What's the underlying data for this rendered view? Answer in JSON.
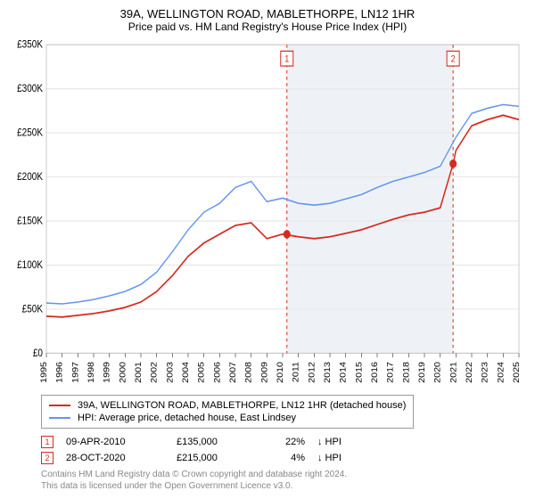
{
  "title": "39A, WELLINGTON ROAD, MABLETHORPE, LN12 1HR",
  "subtitle": "Price paid vs. HM Land Registry's House Price Index (HPI)",
  "chart": {
    "type": "line",
    "background_color": "#ffffff",
    "shaded_region_color": "#eef2f7",
    "grid_color": "#e8e8e8",
    "inner_border_color": "#cccccc",
    "x_axis": {
      "min": 1995,
      "max": 2025,
      "tick_step": 1,
      "label": ""
    },
    "y_axis": {
      "min": 0,
      "max": 350000,
      "tick_step": 50000,
      "label_prefix": "£",
      "label_suffix": "K",
      "label_divisor": 1000
    },
    "series": [
      {
        "name": "hpi",
        "label": "HPI: Average price, detached house, East Lindsey",
        "color": "#6495ed",
        "line_width": 1.3,
        "data": [
          [
            1995,
            57000
          ],
          [
            1996,
            56000
          ],
          [
            1997,
            58000
          ],
          [
            1998,
            61000
          ],
          [
            1999,
            65000
          ],
          [
            2000,
            70000
          ],
          [
            2001,
            78000
          ],
          [
            2002,
            92000
          ],
          [
            2003,
            115000
          ],
          [
            2004,
            140000
          ],
          [
            2005,
            160000
          ],
          [
            2006,
            170000
          ],
          [
            2007,
            188000
          ],
          [
            2008,
            195000
          ],
          [
            2009,
            172000
          ],
          [
            2010,
            176000
          ],
          [
            2011,
            170000
          ],
          [
            2012,
            168000
          ],
          [
            2013,
            170000
          ],
          [
            2014,
            175000
          ],
          [
            2015,
            180000
          ],
          [
            2016,
            188000
          ],
          [
            2017,
            195000
          ],
          [
            2018,
            200000
          ],
          [
            2019,
            205000
          ],
          [
            2020,
            212000
          ],
          [
            2021,
            245000
          ],
          [
            2022,
            272000
          ],
          [
            2023,
            278000
          ],
          [
            2024,
            282000
          ],
          [
            2025,
            280000
          ]
        ]
      },
      {
        "name": "property",
        "label": "39A, WELLINGTON ROAD, MABLETHORPE, LN12 1HR (detached house)",
        "color": "#d52b1e",
        "line_width": 1.5,
        "data": [
          [
            1995,
            42000
          ],
          [
            1996,
            41000
          ],
          [
            1997,
            43000
          ],
          [
            1998,
            45000
          ],
          [
            1999,
            48000
          ],
          [
            2000,
            52000
          ],
          [
            2001,
            58000
          ],
          [
            2002,
            70000
          ],
          [
            2003,
            88000
          ],
          [
            2004,
            110000
          ],
          [
            2005,
            125000
          ],
          [
            2006,
            135000
          ],
          [
            2007,
            145000
          ],
          [
            2008,
            148000
          ],
          [
            2009,
            130000
          ],
          [
            2010,
            135000
          ],
          [
            2011,
            132000
          ],
          [
            2012,
            130000
          ],
          [
            2013,
            132000
          ],
          [
            2014,
            136000
          ],
          [
            2015,
            140000
          ],
          [
            2016,
            146000
          ],
          [
            2017,
            152000
          ],
          [
            2018,
            157000
          ],
          [
            2019,
            160000
          ],
          [
            2020,
            165000
          ],
          [
            2020.82,
            215000
          ],
          [
            2021,
            230000
          ],
          [
            2022,
            258000
          ],
          [
            2023,
            265000
          ],
          [
            2024,
            270000
          ],
          [
            2025,
            265000
          ]
        ]
      }
    ],
    "markers": [
      {
        "x": 2010.27,
        "y": 135000,
        "color": "#d52b1e",
        "radius": 4
      },
      {
        "x": 2020.82,
        "y": 215000,
        "color": "#d52b1e",
        "radius": 4
      }
    ],
    "reference_lines": [
      {
        "x": 2010.27,
        "label": "1",
        "color": "#d52b1e",
        "dash": "3 3"
      },
      {
        "x": 2020.82,
        "label": "2",
        "color": "#d52b1e",
        "dash": "3 3"
      }
    ],
    "shaded_region": {
      "x_from": 2010.27,
      "x_to": 2020.82
    }
  },
  "legend": {
    "series1_label": "39A, WELLINGTON ROAD, MABLETHORPE, LN12 1HR (detached house)",
    "series2_label": "HPI: Average price, detached house, East Lindsey"
  },
  "sales": [
    {
      "badge": "1",
      "date": "09-APR-2010",
      "price": "£135,000",
      "pct": "22%",
      "hpi_arrow": "↓",
      "hpi_label": "HPI",
      "badge_color": "#d52b1e"
    },
    {
      "badge": "2",
      "date": "28-OCT-2020",
      "price": "£215,000",
      "pct": "4%",
      "hpi_arrow": "↓",
      "hpi_label": "HPI",
      "badge_color": "#d52b1e"
    }
  ],
  "license": {
    "line1": "Contains HM Land Registry data © Crown copyright and database right 2024.",
    "line2": "This data is licensed under the Open Government Licence v3.0."
  }
}
